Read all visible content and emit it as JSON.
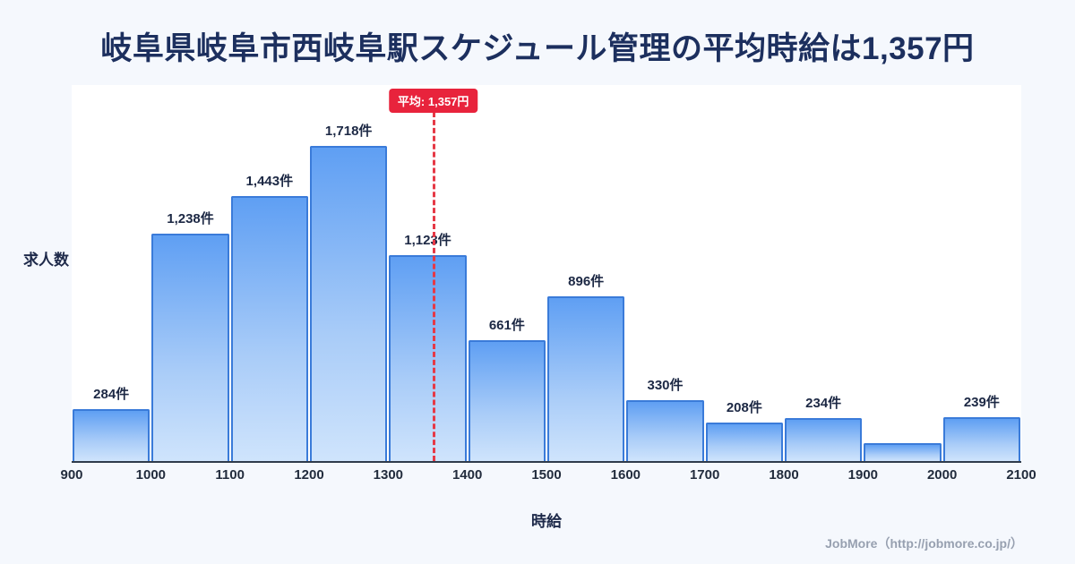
{
  "title": "岐阜県岐阜市西岐阜駅スケジュール管理の平均時給は1,357円",
  "footer": "JobMore（http://jobmore.co.jp/）",
  "chart_data": {
    "type": "bar",
    "title": "岐阜県岐阜市西岐阜駅スケジュール管理の平均時給は1,357円",
    "xlabel": "時給",
    "ylabel": "求人数",
    "x_ticks": [
      900,
      1000,
      1100,
      1200,
      1300,
      1400,
      1500,
      1600,
      1700,
      1800,
      1900,
      2000,
      2100
    ],
    "xlim": [
      900,
      2100
    ],
    "ylim": [
      0,
      1800
    ],
    "grid": false,
    "legend": "none",
    "bins": [
      {
        "range": [
          900,
          1000
        ],
        "value": 284,
        "label": "284件"
      },
      {
        "range": [
          1000,
          1100
        ],
        "value": 1238,
        "label": "1,238件"
      },
      {
        "range": [
          1100,
          1200
        ],
        "value": 1443,
        "label": "1,443件"
      },
      {
        "range": [
          1200,
          1300
        ],
        "value": 1718,
        "label": "1,718件"
      },
      {
        "range": [
          1300,
          1400
        ],
        "value": 1123,
        "label": "1,123件"
      },
      {
        "range": [
          1400,
          1500
        ],
        "value": 661,
        "label": "661件"
      },
      {
        "range": [
          1500,
          1600
        ],
        "value": 896,
        "label": "896件"
      },
      {
        "range": [
          1600,
          1700
        ],
        "value": 330,
        "label": "330件"
      },
      {
        "range": [
          1700,
          1800
        ],
        "value": 208,
        "label": "208件"
      },
      {
        "range": [
          1800,
          1900
        ],
        "value": 234,
        "label": "234件"
      },
      {
        "range": [
          1900,
          2000
        ],
        "value": 100,
        "label": ""
      },
      {
        "range": [
          2000,
          2100
        ],
        "value": 239,
        "label": "239件"
      }
    ],
    "average": {
      "value": 1357,
      "badge_label": "平均: 1,357円"
    },
    "colors": {
      "background": "#f5f8fd",
      "plot_background": "#ffffff",
      "bar_fill_top": "#5f9ff3",
      "bar_fill_bottom": "#cfe4fc",
      "bar_border": "#3a7bd9",
      "average_line": "#e63946",
      "badge_bg": "#e8233c",
      "badge_text": "#ffffff",
      "title_text": "#1c2f5e",
      "label_text": "#1c2844",
      "footer_text": "#97a0b0"
    }
  }
}
